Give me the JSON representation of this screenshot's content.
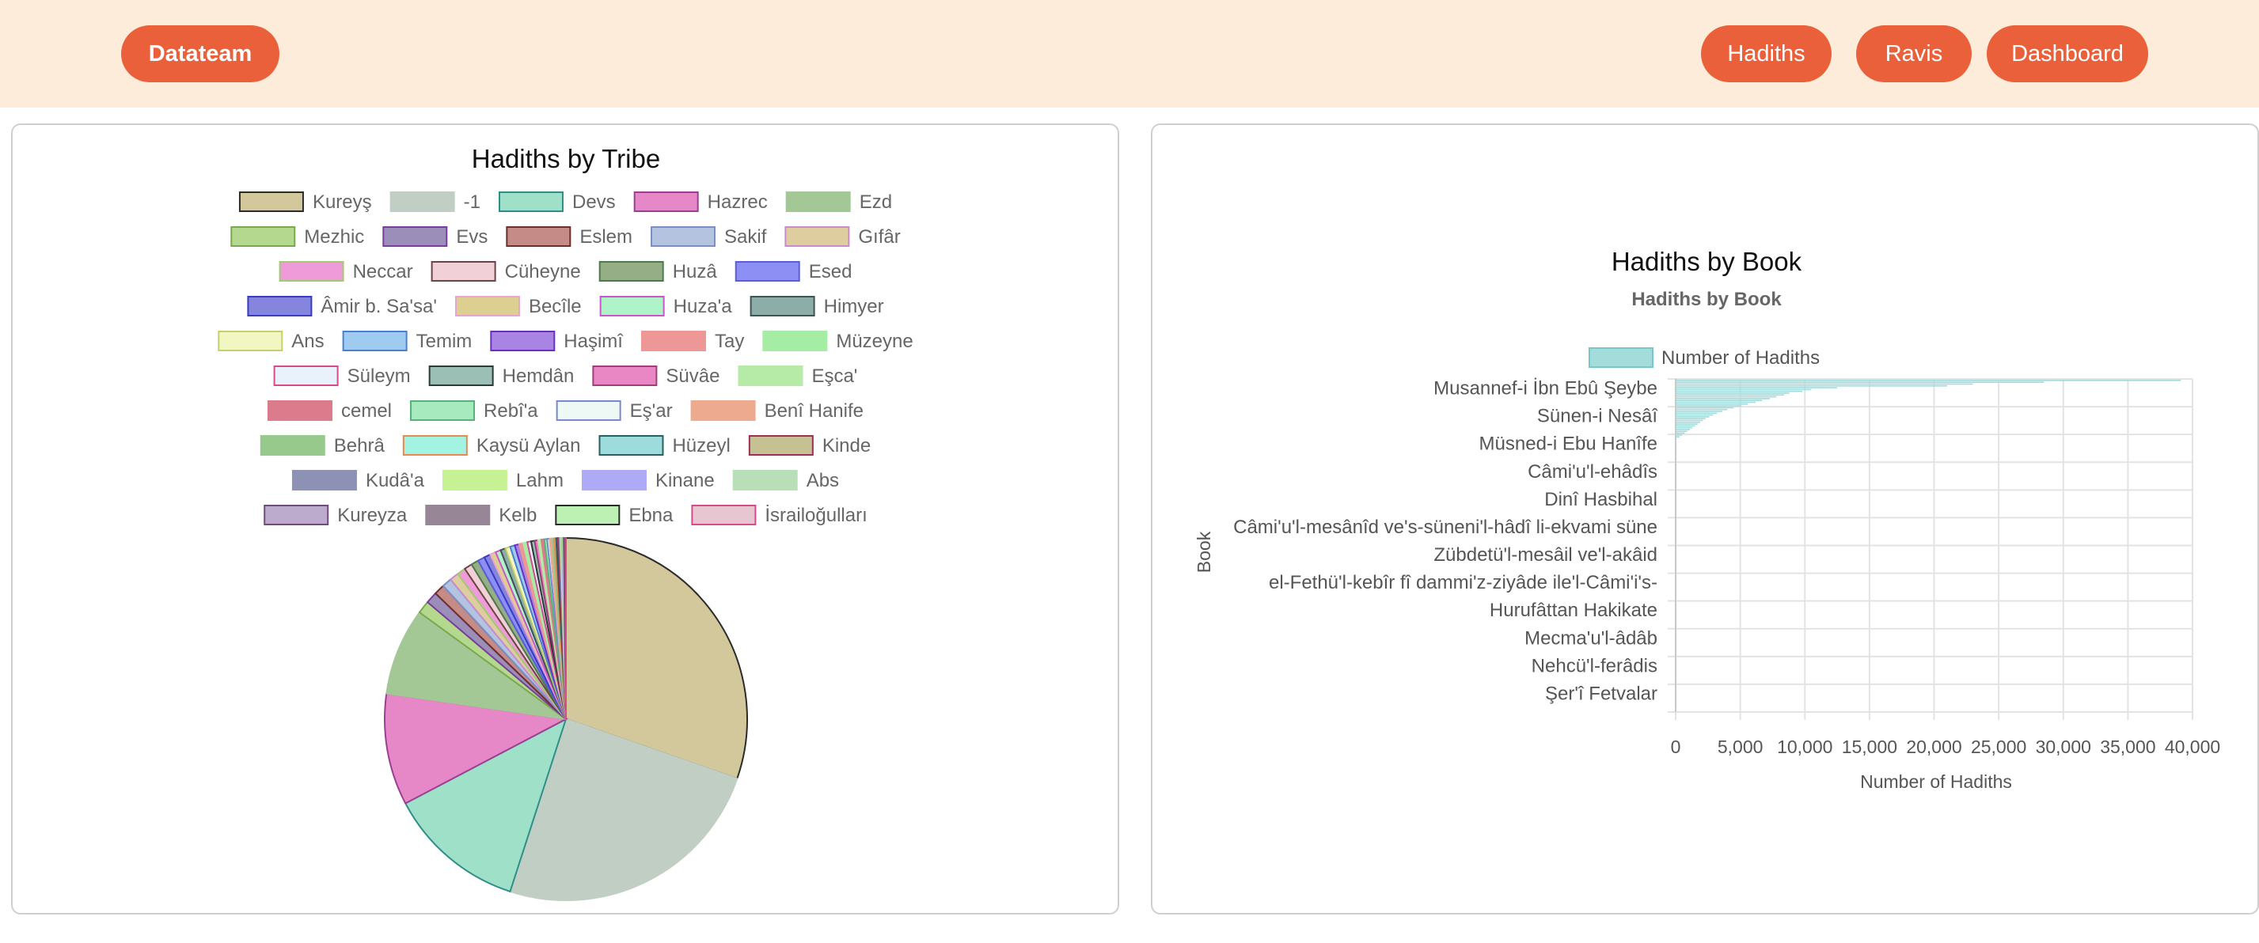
{
  "navbar": {
    "brand": "Datateam",
    "links": [
      "Hadiths",
      "Ravis",
      "Dashboard"
    ]
  },
  "tribe_card": {
    "heading": "Hadiths by Tribe"
  },
  "book_card": {
    "heading": "Hadiths by Book"
  },
  "chart_data": [
    {
      "type": "pie",
      "title": "",
      "legend_position": "top",
      "categories": [
        "Kureyş",
        "-1",
        "Devs",
        "Hazrec",
        "Ezd",
        "Mezhic",
        "Evs",
        "Eslem",
        "Sakif",
        "Gıfâr",
        "Neccar",
        "Cüheyne",
        "Huzâ",
        "Esed",
        "Âmir b. Sa'sa'",
        "Becîle",
        "Huza'a",
        "Himyer",
        "Ans",
        "Temim",
        "Haşimî",
        "Tay",
        "Müzeyne",
        "Süleym",
        "Hemdân",
        "Süvâe",
        "Eşca'",
        "cemel",
        "Rebî'a",
        "Eş'ar",
        "Benî Hanife",
        "Behrâ",
        "Kaysü Aylan",
        "Hüzeyl",
        "Kinde",
        "Kudâ'a",
        "Lahm",
        "Kinane",
        "Abs",
        "Kureyza",
        "Kelb",
        "Ebna",
        "İsrailoğulları"
      ],
      "values": [
        3200,
        2600,
        1300,
        1050,
        820,
        120,
        110,
        100,
        90,
        85,
        80,
        75,
        70,
        65,
        60,
        55,
        50,
        48,
        46,
        44,
        42,
        40,
        38,
        36,
        34,
        32,
        30,
        28,
        26,
        24,
        22,
        20,
        18,
        16,
        14,
        12,
        10,
        9,
        8,
        7,
        6,
        5,
        4
      ],
      "colors": [
        "#d3c89b",
        "#c0cec4",
        "#9ee0c8",
        "#e688c8",
        "#a3c896",
        "#b4d98e",
        "#9b8fb9",
        "#c48b87",
        "#b3c3e0",
        "#ddcd9f",
        "#f09bd9",
        "#f2d0d8",
        "#95ae86",
        "#8d8ff5",
        "#8585de",
        "#dccf90",
        "#aef4c8",
        "#8cada8",
        "#f1f6c3",
        "#9ecbef",
        "#a985e3",
        "#ee9797",
        "#a5eda5",
        "#e9f1fb",
        "#9cbfb5",
        "#e887c4",
        "#b5eba7",
        "#db7b8b",
        "#a6eabe",
        "#eef9f6",
        "#eeaa8e",
        "#96c98b",
        "#a3f3e3",
        "#9ddcdc",
        "#c6c193",
        "#8d92b4",
        "#c7f293",
        "#aeaaf5",
        "#b9dfb8",
        "#bcabcc",
        "#978695",
        "#bcf1b3",
        "#e8c6d1"
      ],
      "borders": [
        "#2b2b2b",
        "#c0cec4",
        "#2e8f8a",
        "#9c3f92",
        "#a3c896",
        "#7aa84e",
        "#7a3d9c",
        "#6b2f2f",
        "#7a8fc7",
        "#c98bd0",
        "#9fcc70",
        "#6b4444",
        "#4b7a4b",
        "#5a5cd9",
        "#3a3ac2",
        "#e8a3d0",
        "#cc55cc",
        "#3c5454",
        "#c7cf6e",
        "#4b7fd0",
        "#6a2fc2",
        "#ee9797",
        "#a5eda5",
        "#d64b8c",
        "#2a3a3a",
        "#a33c7a",
        "#b5eba7",
        "#db7b8b",
        "#55b37a",
        "#7a88d0",
        "#eeaa8e",
        "#96c98b",
        "#e58a50",
        "#2a6060",
        "#9c2f5a",
        "#8d92b4",
        "#c7f293",
        "#aeaaf5",
        "#b9dfb8",
        "#6b4f7a",
        "#978695",
        "#2a2a2a",
        "#d64b8c"
      ]
    },
    {
      "type": "bar",
      "orientation": "horizontal",
      "title": "Hadiths by Book",
      "xlabel": "Number of Hadiths",
      "ylabel": "Book",
      "xlim": [
        0,
        40000
      ],
      "xticks": [
        "0",
        "5,000",
        "10,000",
        "15,000",
        "20,000",
        "25,000",
        "30,000",
        "35,000",
        "40,000"
      ],
      "grid": true,
      "legend_position": "top",
      "series_name": "Number of Hadiths",
      "color": "#a4dcdc",
      "border_color": "#77c8c8",
      "visible_labels": [
        "Musannef-i İbn Ebû Şeybe",
        "Sünen-i Nesâî",
        "Müsned-i Ebu Hanîfe",
        "Câmi'u'l-ehâdîs",
        "Dinî Hasbihal",
        "Câmi'u'l-mesânîd ve's-süneni'l-hâdî li-ekvami süne",
        "Zübdetü'l-mesâil ve'l-akâid",
        "el-Fethü'l-kebîr fî dammi'z-ziyâde ile'l-Câmi'i's-",
        "Hurufâttan Hakikate",
        "Mecma'u'l-âdâb",
        "Nehcü'l-ferâdis",
        "Şer'î Fetvalar"
      ],
      "values": [
        39100,
        28500,
        23000,
        21000,
        12500,
        10500,
        9800,
        8800,
        8400,
        7800,
        7300,
        6700,
        6200,
        5600,
        5100,
        4500,
        4000,
        3600,
        3200,
        2900,
        2600,
        2300,
        2100,
        1900,
        1700,
        1500,
        1300,
        1100,
        900,
        700,
        500,
        300
      ]
    }
  ]
}
